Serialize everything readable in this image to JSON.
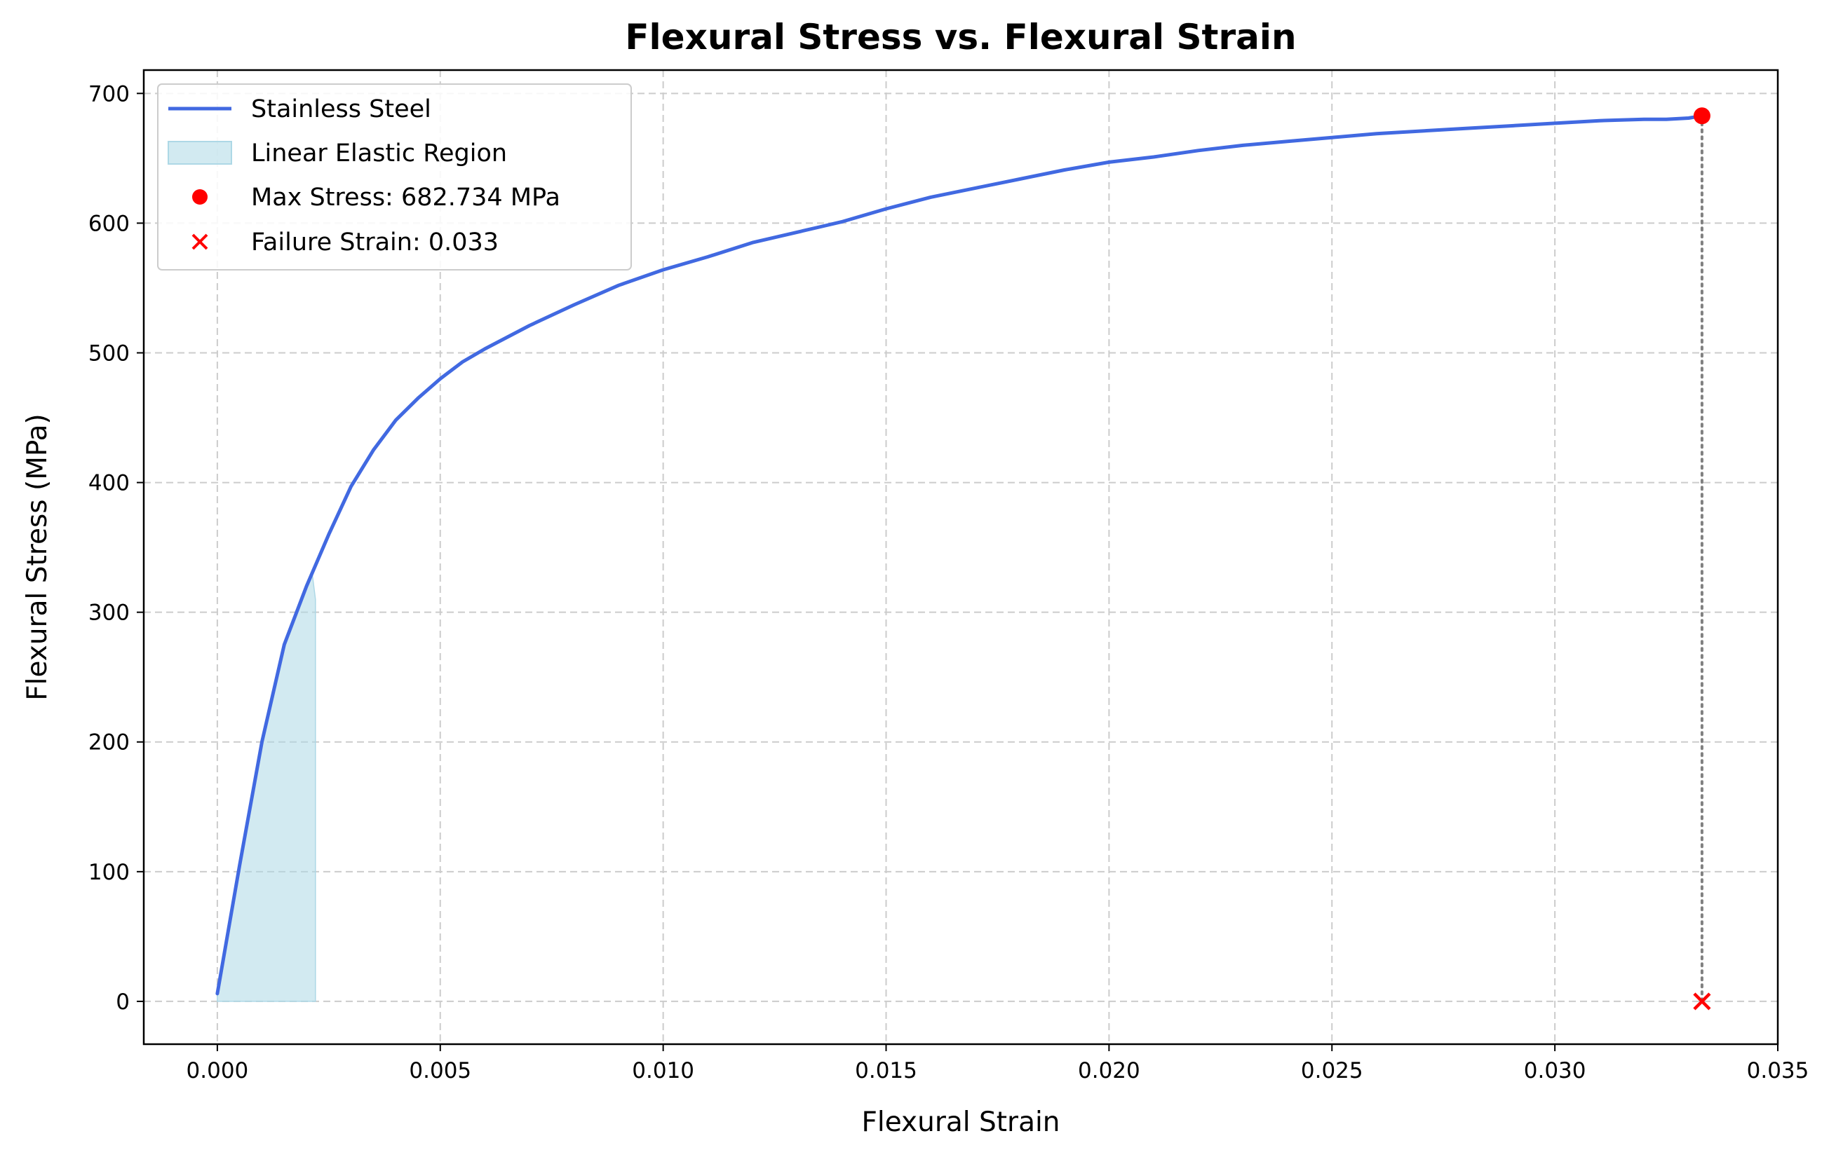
{
  "chart_data": {
    "type": "line",
    "title": "Flexural Stress vs. Flexural Strain",
    "xlabel": "Flexural Strain",
    "ylabel": "Flexural Stress (MPa)",
    "xlim": [
      -0.00165,
      0.035
    ],
    "ylim": [
      -33,
      718
    ],
    "xticks": [
      0.0,
      0.005,
      0.01,
      0.015,
      0.02,
      0.025,
      0.03,
      0.035
    ],
    "xtick_labels": [
      "0.000",
      "0.005",
      "0.010",
      "0.015",
      "0.020",
      "0.025",
      "0.030",
      "0.035"
    ],
    "yticks": [
      0,
      100,
      200,
      300,
      400,
      500,
      600,
      700
    ],
    "ytick_labels": [
      "0",
      "100",
      "200",
      "300",
      "400",
      "500",
      "600",
      "700"
    ],
    "grid": true,
    "legend_position": "top-left",
    "colors": {
      "series": "#4169e1",
      "region_fill": "#add8e6",
      "marker": "#ff0000",
      "dotted_line": "#808080"
    },
    "series": [
      {
        "name": "Stainless Steel",
        "x": [
          0.0,
          0.0005,
          0.001,
          0.0015,
          0.002,
          0.0025,
          0.003,
          0.0035,
          0.004,
          0.0045,
          0.005,
          0.0055,
          0.006,
          0.007,
          0.008,
          0.009,
          0.01,
          0.011,
          0.012,
          0.013,
          0.0135,
          0.014,
          0.015,
          0.016,
          0.017,
          0.018,
          0.019,
          0.02,
          0.021,
          0.022,
          0.023,
          0.024,
          0.025,
          0.026,
          0.027,
          0.028,
          0.029,
          0.03,
          0.031,
          0.032,
          0.0325,
          0.033,
          0.0333
        ],
        "y": [
          6,
          105,
          200,
          275,
          320,
          360,
          397,
          425,
          448,
          465,
          480,
          493,
          503,
          521,
          537,
          552,
          564,
          574,
          585,
          593,
          597,
          601,
          611,
          620,
          627,
          634,
          641,
          647,
          651,
          656,
          660,
          663,
          666,
          669,
          671,
          673,
          675,
          677,
          679,
          680,
          680,
          681,
          682.7
        ]
      }
    ],
    "linear_elastic_region": {
      "name": "Linear Elastic Region",
      "x_start": 0.0,
      "x_end": 0.0022,
      "y_top": 310
    },
    "max_stress_point": {
      "name": "Max Stress: 682.734 MPa",
      "x": 0.0333,
      "y": 682.734
    },
    "failure_point": {
      "name": "Failure Strain: 0.033",
      "x": 0.0333,
      "y": 0
    }
  }
}
